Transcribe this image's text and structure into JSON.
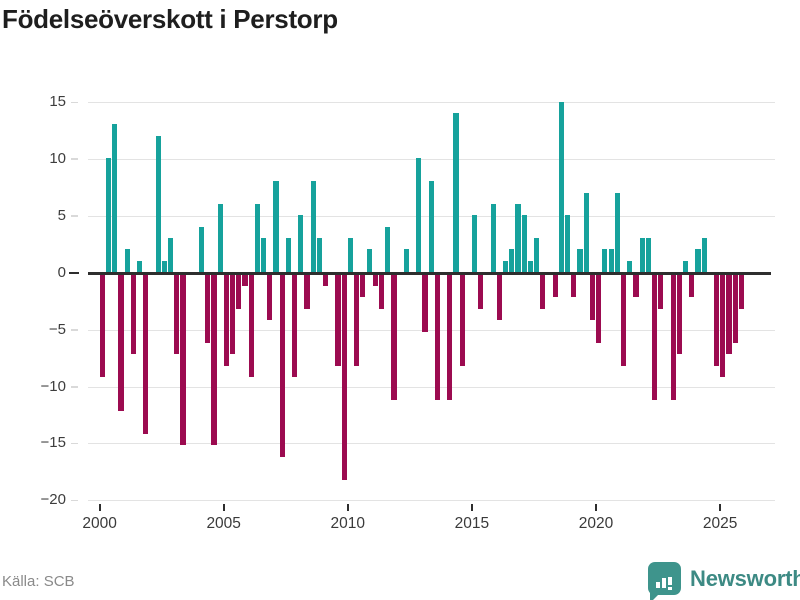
{
  "header": {
    "title": "Födelseöverskott i Perstorp"
  },
  "footer": {
    "source": "Källa: SCB",
    "logo_text": "Newsworthy"
  },
  "colors": {
    "positive": "#16a29c",
    "negative": "#9c0b50",
    "axis": "#2e2e2e",
    "gridline": "#e3e3e3",
    "logo_teal": "#3e948c",
    "logo_text_teal": "#3d8a84",
    "title_text": "#1e1e1e",
    "tick_text": "#3a3a3a",
    "source_text": "#8a8a8a"
  },
  "chart_data": {
    "type": "bar",
    "title": "Födelseöverskott i Perstorp",
    "period": "quarterly",
    "start_period": "2000 Q1",
    "end_period": "2025 Q4",
    "xlabel": "",
    "ylabel": "",
    "ylim": [
      -20,
      16.5
    ],
    "grid": "horizontal",
    "legend": "none",
    "y_ticks": [
      15,
      10,
      5,
      0,
      -5,
      -10,
      -15,
      -20
    ],
    "x_tick_labels": [
      "2000",
      "2005",
      "2010",
      "2015",
      "2020",
      "2025"
    ],
    "x_tick_years": [
      2000,
      2005,
      2010,
      2015,
      2020,
      2025
    ],
    "series": [
      {
        "name": "Födelseöverskott",
        "values": [
          -9,
          10,
          13,
          -12,
          2,
          -7,
          1,
          -14,
          0,
          12,
          1,
          3,
          -7,
          -15,
          0,
          0,
          4,
          -6,
          -15,
          6,
          -8,
          -7,
          -3,
          -1,
          -9,
          6,
          3,
          -4,
          8,
          -16,
          3,
          -9,
          5,
          -3,
          8,
          3,
          -1,
          0,
          -8,
          -18,
          3,
          -8,
          -2,
          2,
          -1,
          -3,
          4,
          -11,
          0,
          2,
          0,
          10,
          -5,
          8,
          -11,
          0,
          -11,
          14,
          -8,
          0,
          5,
          -3,
          0,
          6,
          -4,
          1,
          2,
          6,
          5,
          1,
          3,
          -3,
          0,
          -2,
          15,
          5,
          -2,
          2,
          7,
          -4,
          -6,
          2,
          2,
          7,
          -8,
          1,
          -2,
          3,
          3,
          -11,
          -3,
          0,
          -11,
          -7,
          1,
          -2,
          2,
          3,
          0,
          -8,
          -9,
          -7,
          -6,
          -3
        ]
      }
    ]
  }
}
